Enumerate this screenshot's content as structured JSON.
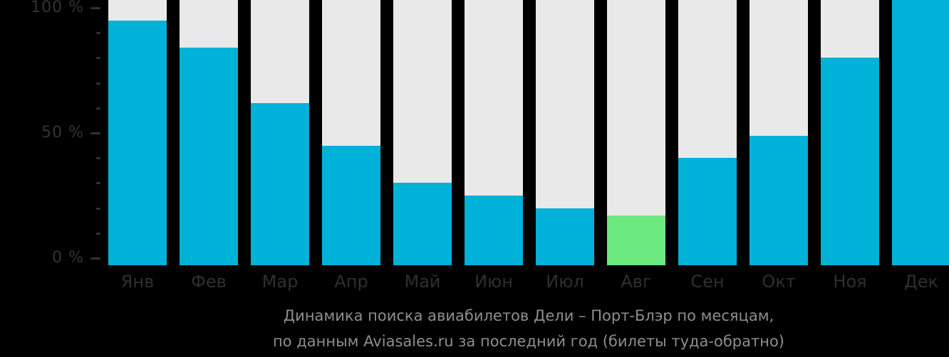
{
  "colors": {
    "background": "#000000",
    "bar_fill": "#00B1D8",
    "bar_highlight": "#6CE97F",
    "bar_track": "#E9E9E9",
    "axis_text": "#333333",
    "tick_mark": "#333333",
    "month_text": "#2F2F2F",
    "caption_text": "#8E8E8E"
  },
  "chart_data": {
    "type": "bar",
    "title": "Динамика поиска авиабилетов Дели – Порт-Блэр по месяцам,",
    "subtitle": "по данным Aviasales.ru за последний год (билеты туда-обратно)",
    "categories": [
      "Янв",
      "Фев",
      "Мар",
      "Апр",
      "Май",
      "Июн",
      "Июл",
      "Авг",
      "Сен",
      "Окт",
      "Ноя",
      "Дек"
    ],
    "values": [
      95,
      84,
      62,
      45,
      30,
      25,
      20,
      17,
      40,
      49,
      80,
      100
    ],
    "unit": "%",
    "ylim": [
      0,
      100
    ],
    "y_major_ticks": [
      {
        "value": 0,
        "label": "0 %"
      },
      {
        "value": 50,
        "label": "50 %"
      },
      {
        "value": 100,
        "label": "100 %"
      }
    ],
    "y_minor_tick_step": 10,
    "highlight": {
      "category": "Авг",
      "index": 7
    },
    "grid": false,
    "legend": false,
    "bar_style": "filled bars over full-height light track"
  }
}
